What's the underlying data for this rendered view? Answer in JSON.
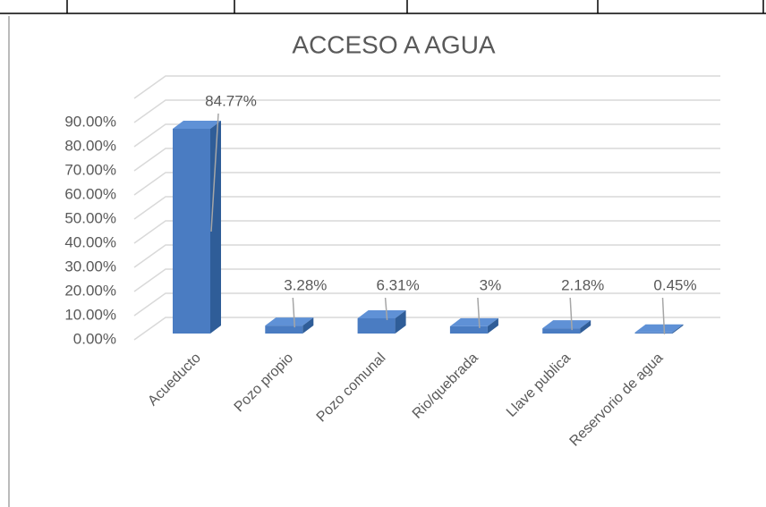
{
  "chart_data": {
    "type": "bar3d",
    "title": "ACCESO A AGUA",
    "categories": [
      "Acueducto",
      "Pozo propio",
      "Pozo comunal",
      "Rio/quebrada",
      "Llave publica",
      "Reservorio de agua"
    ],
    "values": [
      84.77,
      3.28,
      6.31,
      3,
      2.18,
      0.45
    ],
    "value_labels": [
      "84.77%",
      "3.28%",
      "6.31%",
      "3%",
      "2.18%",
      "0.45%"
    ],
    "color": "#4a7cc2",
    "ylim": [
      0,
      100
    ],
    "yticks": [
      {
        "value": 0,
        "label": "0.00%"
      },
      {
        "value": 10,
        "label": "10.00%"
      },
      {
        "value": 20,
        "label": "20.00%"
      },
      {
        "value": 30,
        "label": "30.00%"
      },
      {
        "value": 40,
        "label": "40.00%"
      },
      {
        "value": 50,
        "label": "50.00%"
      },
      {
        "value": 60,
        "label": "60.00%"
      },
      {
        "value": 70,
        "label": "70.00%"
      },
      {
        "value": 80,
        "label": "80.00%"
      },
      {
        "value": 90,
        "label": "90.00%"
      }
    ],
    "grid": true
  }
}
